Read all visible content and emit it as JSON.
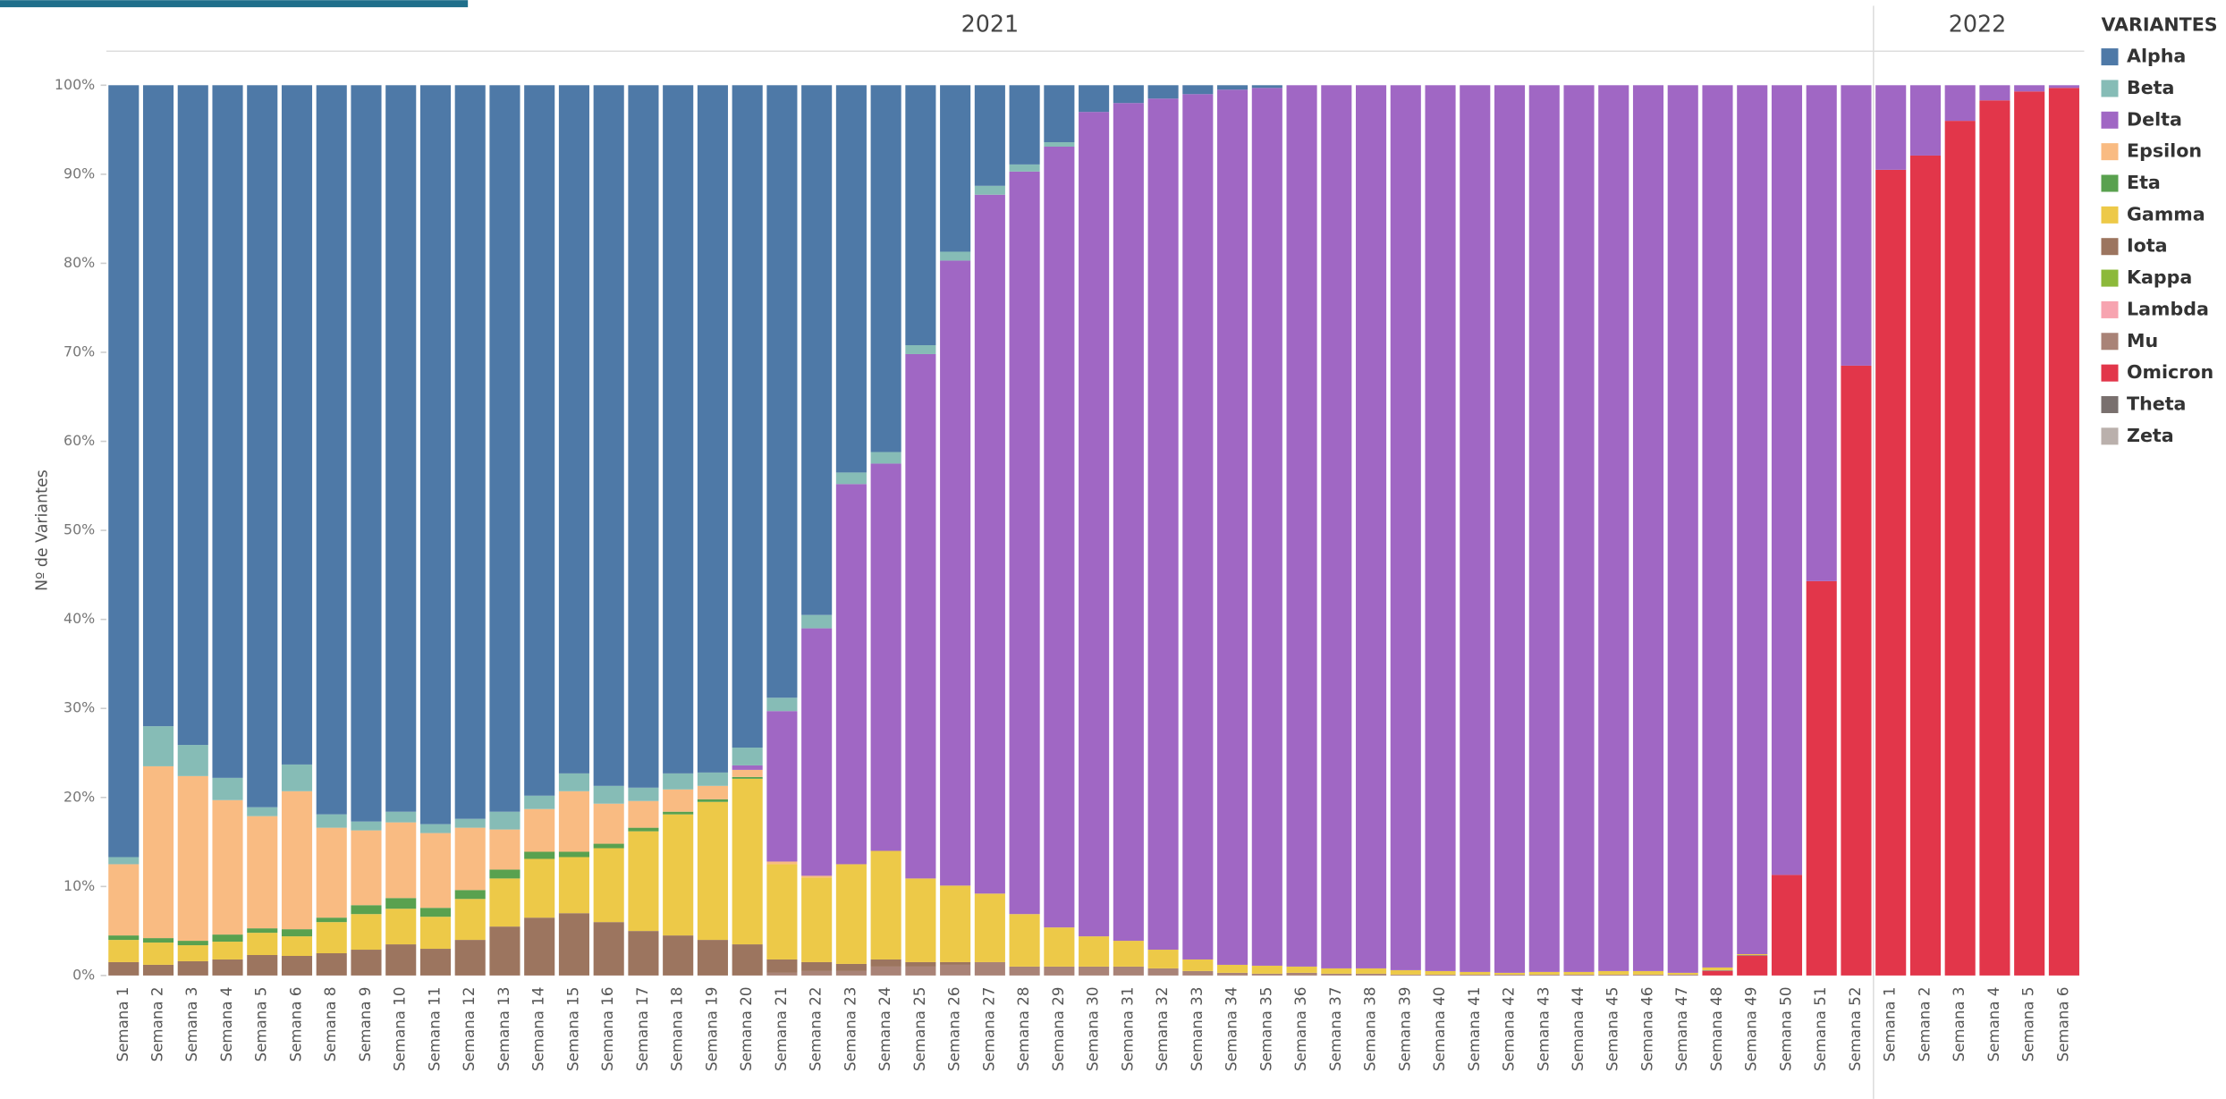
{
  "chart_data": {
    "type": "stacked_bar_100",
    "ylabel": "Nº de Variantes",
    "legend_title": "VARIANTES",
    "groups": [
      {
        "label": "2021",
        "categories": [
          "Semana 1",
          "Semana 2",
          "Semana 3",
          "Semana 4",
          "Semana 5",
          "Semana 6",
          "Semana 8",
          "Semana 9",
          "Semana 10",
          "Semana 11",
          "Semana 12",
          "Semana 13",
          "Semana 14",
          "Semana 15",
          "Semana 16",
          "Semana 17",
          "Semana 18",
          "Semana 19",
          "Semana 20",
          "Semana 21",
          "Semana 22",
          "Semana 23",
          "Semana 24",
          "Semana 25",
          "Semana 26",
          "Semana 27",
          "Semana 28",
          "Semana 29",
          "Semana 30",
          "Semana 31",
          "Semana 32",
          "Semana 33",
          "Semana 34",
          "Semana 35",
          "Semana 36",
          "Semana 37",
          "Semana 38",
          "Semana 39",
          "Semana 40",
          "Semana 41",
          "Semana 42",
          "Semana 43",
          "Semana 44",
          "Semana 45",
          "Semana 46",
          "Semana 47",
          "Semana 48",
          "Semana 49",
          "Semana 50",
          "Semana 51",
          "Semana 52"
        ]
      },
      {
        "label": "2022",
        "categories": [
          "Semana 1",
          "Semana 2",
          "Semana 3",
          "Semana 4",
          "Semana 5",
          "Semana 6"
        ]
      }
    ],
    "ylim": [
      0,
      100
    ],
    "yticks": [
      {
        "value": 0,
        "label": "0%"
      },
      {
        "value": 10,
        "label": "10%"
      },
      {
        "value": 20,
        "label": "20%"
      },
      {
        "value": 30,
        "label": "30%"
      },
      {
        "value": 40,
        "label": "40%"
      },
      {
        "value": 50,
        "label": "50%"
      },
      {
        "value": 60,
        "label": "60%"
      },
      {
        "value": 70,
        "label": "70%"
      },
      {
        "value": 80,
        "label": "80%"
      },
      {
        "value": 90,
        "label": "90%"
      },
      {
        "value": 100,
        "label": "100%"
      }
    ],
    "series": [
      {
        "name": "Alpha",
        "color": "#4e79a7",
        "values": [
          86.7,
          72.0,
          74.1,
          77.8,
          81.1,
          76.3,
          81.9,
          82.7,
          81.6,
          83.0,
          82.4,
          81.6,
          79.8,
          77.3,
          78.7,
          78.9,
          77.3,
          77.2,
          74.4,
          68.8,
          59.5,
          43.5,
          41.2,
          29.2,
          18.7,
          11.3,
          8.9,
          6.4,
          3.0,
          2.0,
          1.5,
          1.0,
          0.5,
          0.3,
          0,
          0,
          0,
          0,
          0,
          0,
          0,
          0,
          0,
          0,
          0,
          0,
          0,
          0,
          0,
          0,
          0,
          0,
          0,
          0,
          0,
          0,
          0
        ]
      },
      {
        "name": "Beta",
        "color": "#86bcb6",
        "values": [
          0.8,
          4.5,
          3.5,
          2.5,
          1.0,
          3.0,
          1.5,
          1.0,
          1.2,
          1.0,
          1.0,
          2.0,
          1.5,
          2.0,
          2.0,
          1.5,
          1.8,
          1.5,
          2.0,
          1.5,
          1.5,
          1.3,
          1.3,
          1.0,
          1.0,
          1.0,
          0.8,
          0.5,
          0,
          0,
          0,
          0,
          0,
          0,
          0,
          0,
          0,
          0,
          0,
          0,
          0,
          0,
          0,
          0,
          0,
          0,
          0,
          0,
          0,
          0,
          0,
          0,
          0,
          0,
          0,
          0,
          0
        ]
      },
      {
        "name": "Delta",
        "color": "#a067c4",
        "values": [
          0,
          0,
          0,
          0,
          0,
          0,
          0,
          0,
          0,
          0,
          0,
          0,
          0,
          0,
          0,
          0,
          0,
          0,
          0.5,
          16.9,
          27.8,
          42.7,
          43.5,
          58.9,
          70.2,
          78.5,
          83.4,
          87.7,
          92.6,
          94.1,
          95.6,
          97.2,
          98.3,
          98.6,
          99.0,
          99.2,
          99.2,
          99.4,
          99.5,
          99.6,
          99.7,
          99.6,
          99.6,
          99.5,
          99.5,
          99.7,
          99.1,
          97.6,
          88.7,
          55.7,
          31.5,
          9.5,
          7.9,
          4.0,
          1.7,
          0.7,
          0.3
        ]
      },
      {
        "name": "Epsilon",
        "color": "#f9bb82",
        "values": [
          8.0,
          19.3,
          18.5,
          15.1,
          12.6,
          15.5,
          10.1,
          8.4,
          8.5,
          8.4,
          7.0,
          4.5,
          4.8,
          6.8,
          4.5,
          3.0,
          2.5,
          1.5,
          0.8,
          0.3,
          0.2,
          0,
          0,
          0,
          0,
          0,
          0,
          0,
          0,
          0,
          0,
          0,
          0,
          0,
          0,
          0,
          0,
          0,
          0,
          0,
          0,
          0,
          0,
          0,
          0,
          0,
          0,
          0,
          0,
          0,
          0,
          0,
          0,
          0,
          0,
          0,
          0
        ]
      },
      {
        "name": "Eta",
        "color": "#59a14f",
        "values": [
          0.5,
          0.5,
          0.5,
          0.8,
          0.5,
          0.8,
          0.5,
          1.0,
          1.2,
          1.0,
          1.0,
          1.0,
          0.8,
          0.6,
          0.5,
          0.4,
          0.3,
          0.3,
          0.2,
          0,
          0,
          0,
          0,
          0,
          0,
          0,
          0,
          0,
          0,
          0,
          0,
          0,
          0,
          0,
          0,
          0,
          0,
          0,
          0,
          0,
          0,
          0,
          0,
          0,
          0,
          0,
          0,
          0,
          0,
          0,
          0,
          0,
          0,
          0,
          0,
          0,
          0
        ]
      },
      {
        "name": "Gamma",
        "color": "#edc948",
        "values": [
          2.5,
          2.5,
          1.8,
          2.0,
          2.5,
          2.2,
          3.5,
          4.0,
          4.0,
          3.6,
          4.6,
          5.4,
          6.6,
          6.3,
          8.3,
          11.2,
          13.6,
          15.5,
          18.6,
          10.7,
          9.5,
          11.2,
          12.2,
          9.4,
          8.6,
          7.7,
          5.9,
          4.4,
          3.4,
          2.9,
          2.1,
          1.3,
          0.9,
          0.9,
          0.7,
          0.6,
          0.6,
          0.5,
          0.4,
          0.3,
          0.2,
          0.3,
          0.3,
          0.4,
          0.4,
          0.2,
          0.3,
          0.1,
          0,
          0,
          0,
          0,
          0,
          0,
          0,
          0,
          0
        ]
      },
      {
        "name": "Iota",
        "color": "#9c755f",
        "values": [
          1.5,
          1.2,
          1.6,
          1.8,
          2.3,
          2.2,
          2.5,
          2.9,
          3.5,
          3.0,
          4.0,
          5.5,
          6.5,
          7.0,
          6.0,
          5.0,
          4.5,
          4.0,
          3.5,
          1.5,
          1.0,
          0.8,
          0.8,
          0.5,
          0.3,
          0,
          0,
          0,
          0,
          0,
          0,
          0,
          0,
          0,
          0,
          0,
          0,
          0,
          0,
          0,
          0,
          0,
          0,
          0,
          0,
          0,
          0,
          0,
          0,
          0,
          0,
          0,
          0,
          0,
          0,
          0,
          0
        ]
      },
      {
        "name": "Kappa",
        "color": "#8cb93a",
        "values": [
          0,
          0,
          0,
          0,
          0,
          0,
          0,
          0,
          0,
          0,
          0,
          0,
          0,
          0,
          0,
          0,
          0,
          0,
          0,
          0,
          0,
          0,
          0,
          0,
          0,
          0,
          0,
          0,
          0,
          0,
          0,
          0,
          0,
          0,
          0,
          0,
          0,
          0,
          0,
          0,
          0,
          0,
          0,
          0,
          0,
          0,
          0,
          0,
          0,
          0,
          0,
          0,
          0,
          0,
          0,
          0,
          0
        ]
      },
      {
        "name": "Lambda",
        "color": "#f7a4b0",
        "values": [
          0,
          0,
          0,
          0,
          0,
          0,
          0,
          0,
          0,
          0,
          0,
          0,
          0,
          0,
          0,
          0,
          0,
          0,
          0,
          0,
          0,
          0,
          0,
          0,
          0,
          0,
          0,
          0,
          0,
          0,
          0,
          0,
          0,
          0,
          0,
          0,
          0,
          0,
          0,
          0,
          0,
          0,
          0,
          0,
          0,
          0,
          0,
          0,
          0,
          0,
          0,
          0,
          0,
          0,
          0,
          0,
          0
        ]
      },
      {
        "name": "Mu",
        "color": "#a98377",
        "values": [
          0,
          0,
          0,
          0,
          0,
          0,
          0,
          0,
          0,
          0,
          0,
          0,
          0,
          0,
          0,
          0,
          0,
          0,
          0,
          0.3,
          0.5,
          0.5,
          1.0,
          1.0,
          1.2,
          1.5,
          1.0,
          1.0,
          1.0,
          1.0,
          0.8,
          0.5,
          0.3,
          0.2,
          0.3,
          0.2,
          0.2,
          0.1,
          0.1,
          0.1,
          0.1,
          0.1,
          0.1,
          0.1,
          0.1,
          0.1,
          0.1,
          0.1,
          0,
          0,
          0,
          0,
          0,
          0,
          0,
          0,
          0
        ]
      },
      {
        "name": "Omicron",
        "color": "#e2364a",
        "values": [
          0,
          0,
          0,
          0,
          0,
          0,
          0,
          0,
          0,
          0,
          0,
          0,
          0,
          0,
          0,
          0,
          0,
          0,
          0,
          0,
          0,
          0,
          0,
          0,
          0,
          0,
          0,
          0,
          0,
          0,
          0,
          0,
          0,
          0,
          0,
          0,
          0,
          0,
          0,
          0,
          0,
          0,
          0,
          0,
          0,
          0,
          0.5,
          2.2,
          11.3,
          44.3,
          68.5,
          90.5,
          92.1,
          96.0,
          98.3,
          99.3,
          99.7
        ]
      },
      {
        "name": "Theta",
        "color": "#79706e",
        "values": [
          0,
          0,
          0,
          0,
          0,
          0,
          0,
          0,
          0,
          0,
          0,
          0,
          0,
          0,
          0,
          0,
          0,
          0,
          0,
          0,
          0,
          0,
          0,
          0,
          0,
          0,
          0,
          0,
          0,
          0,
          0,
          0,
          0,
          0,
          0,
          0,
          0,
          0,
          0,
          0,
          0,
          0,
          0,
          0,
          0,
          0,
          0,
          0,
          0,
          0,
          0,
          0,
          0,
          0,
          0,
          0,
          0
        ]
      },
      {
        "name": "Zeta",
        "color": "#bab0ac",
        "values": [
          0,
          0,
          0,
          0,
          0,
          0,
          0,
          0,
          0,
          0,
          0,
          0,
          0,
          0,
          0,
          0,
          0,
          0,
          0,
          0,
          0,
          0,
          0,
          0,
          0,
          0,
          0,
          0,
          0,
          0,
          0,
          0,
          0,
          0,
          0,
          0,
          0,
          0,
          0,
          0,
          0,
          0,
          0,
          0,
          0,
          0,
          0,
          0,
          0,
          0,
          0,
          0,
          0,
          0,
          0,
          0,
          0
        ]
      }
    ]
  }
}
